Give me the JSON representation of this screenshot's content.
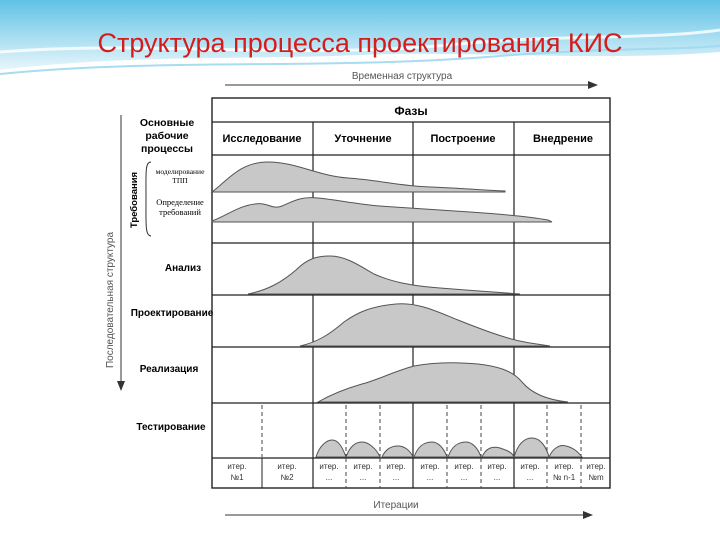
{
  "slide_title": "Структура процесса проектирования КИС",
  "diagram": {
    "time_axis_label": "Временная структура",
    "process_axis_label": "Последовательная структура",
    "iterations_axis_label": "Итерации",
    "phases_header": "Фазы",
    "phases": [
      "Исследование",
      "Уточнение",
      "Построение",
      "Внедрение"
    ],
    "main_processes_label": [
      "Основные",
      "рабочие",
      "процессы"
    ],
    "requirements_label": "Требования",
    "sub_processes": [
      {
        "label": [
          "моделирование",
          "ТПП"
        ]
      },
      {
        "label": [
          "Определение",
          "требований"
        ]
      }
    ],
    "processes": [
      "Анализ",
      "Проектирование",
      "Реализация",
      "Тестирование"
    ],
    "iterations": [
      [
        "итер.",
        "№1"
      ],
      [
        "итер.",
        "№2"
      ],
      [
        "итер.",
        "..."
      ],
      [
        "итер.",
        "..."
      ],
      [
        "итер.",
        "..."
      ],
      [
        "итер.",
        "..."
      ],
      [
        "итер.",
        "..."
      ],
      [
        "итер.",
        "..."
      ],
      [
        "итер.",
        "..."
      ],
      [
        "итер.",
        "№ n-1"
      ],
      [
        "итер.",
        "№m"
      ]
    ],
    "colors": {
      "curve_fill": "#c8c8c8",
      "curve_stroke": "#555555",
      "grid": "#222222",
      "title": "#d41c1c"
    }
  }
}
